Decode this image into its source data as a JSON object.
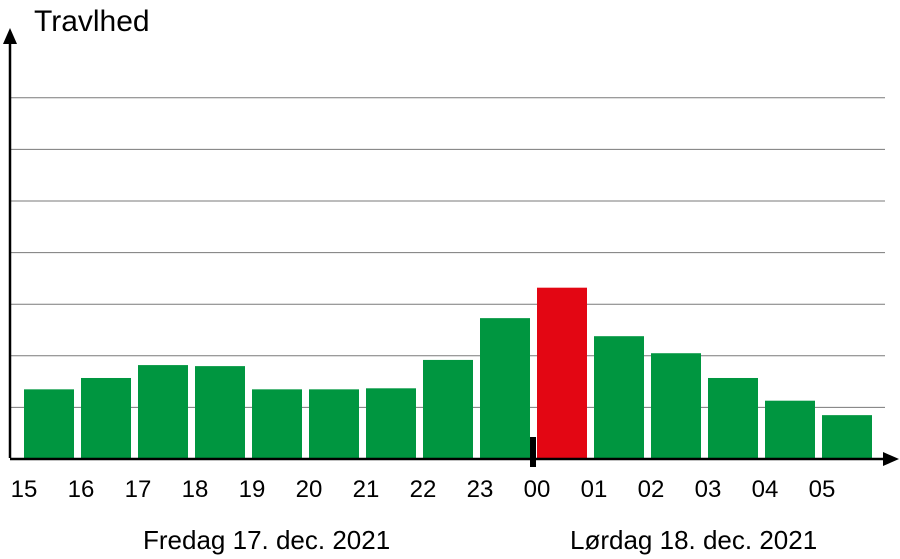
{
  "chart_data": {
    "type": "bar",
    "ylabel": "Travlhed",
    "categories": [
      "15",
      "16",
      "17",
      "18",
      "19",
      "20",
      "21",
      "22",
      "23",
      "00",
      "01",
      "02",
      "03",
      "04",
      "05"
    ],
    "values": [
      1.35,
      1.57,
      1.82,
      1.8,
      1.35,
      1.35,
      1.37,
      1.92,
      2.73,
      3.32,
      2.38,
      2.05,
      1.57,
      1.13,
      0.85
    ],
    "highlight_index": 9,
    "ylim": [
      0,
      7
    ],
    "gridlines": [
      1,
      2,
      3,
      4,
      5,
      6,
      7
    ],
    "day_labels": [
      "Fredag 17. dec. 2021",
      "Lørdag 18. dec. 2021"
    ],
    "colors": {
      "bar": "#009640",
      "highlight": "#e30613",
      "grid": "#7a7a7a",
      "axis": "#000000"
    }
  }
}
